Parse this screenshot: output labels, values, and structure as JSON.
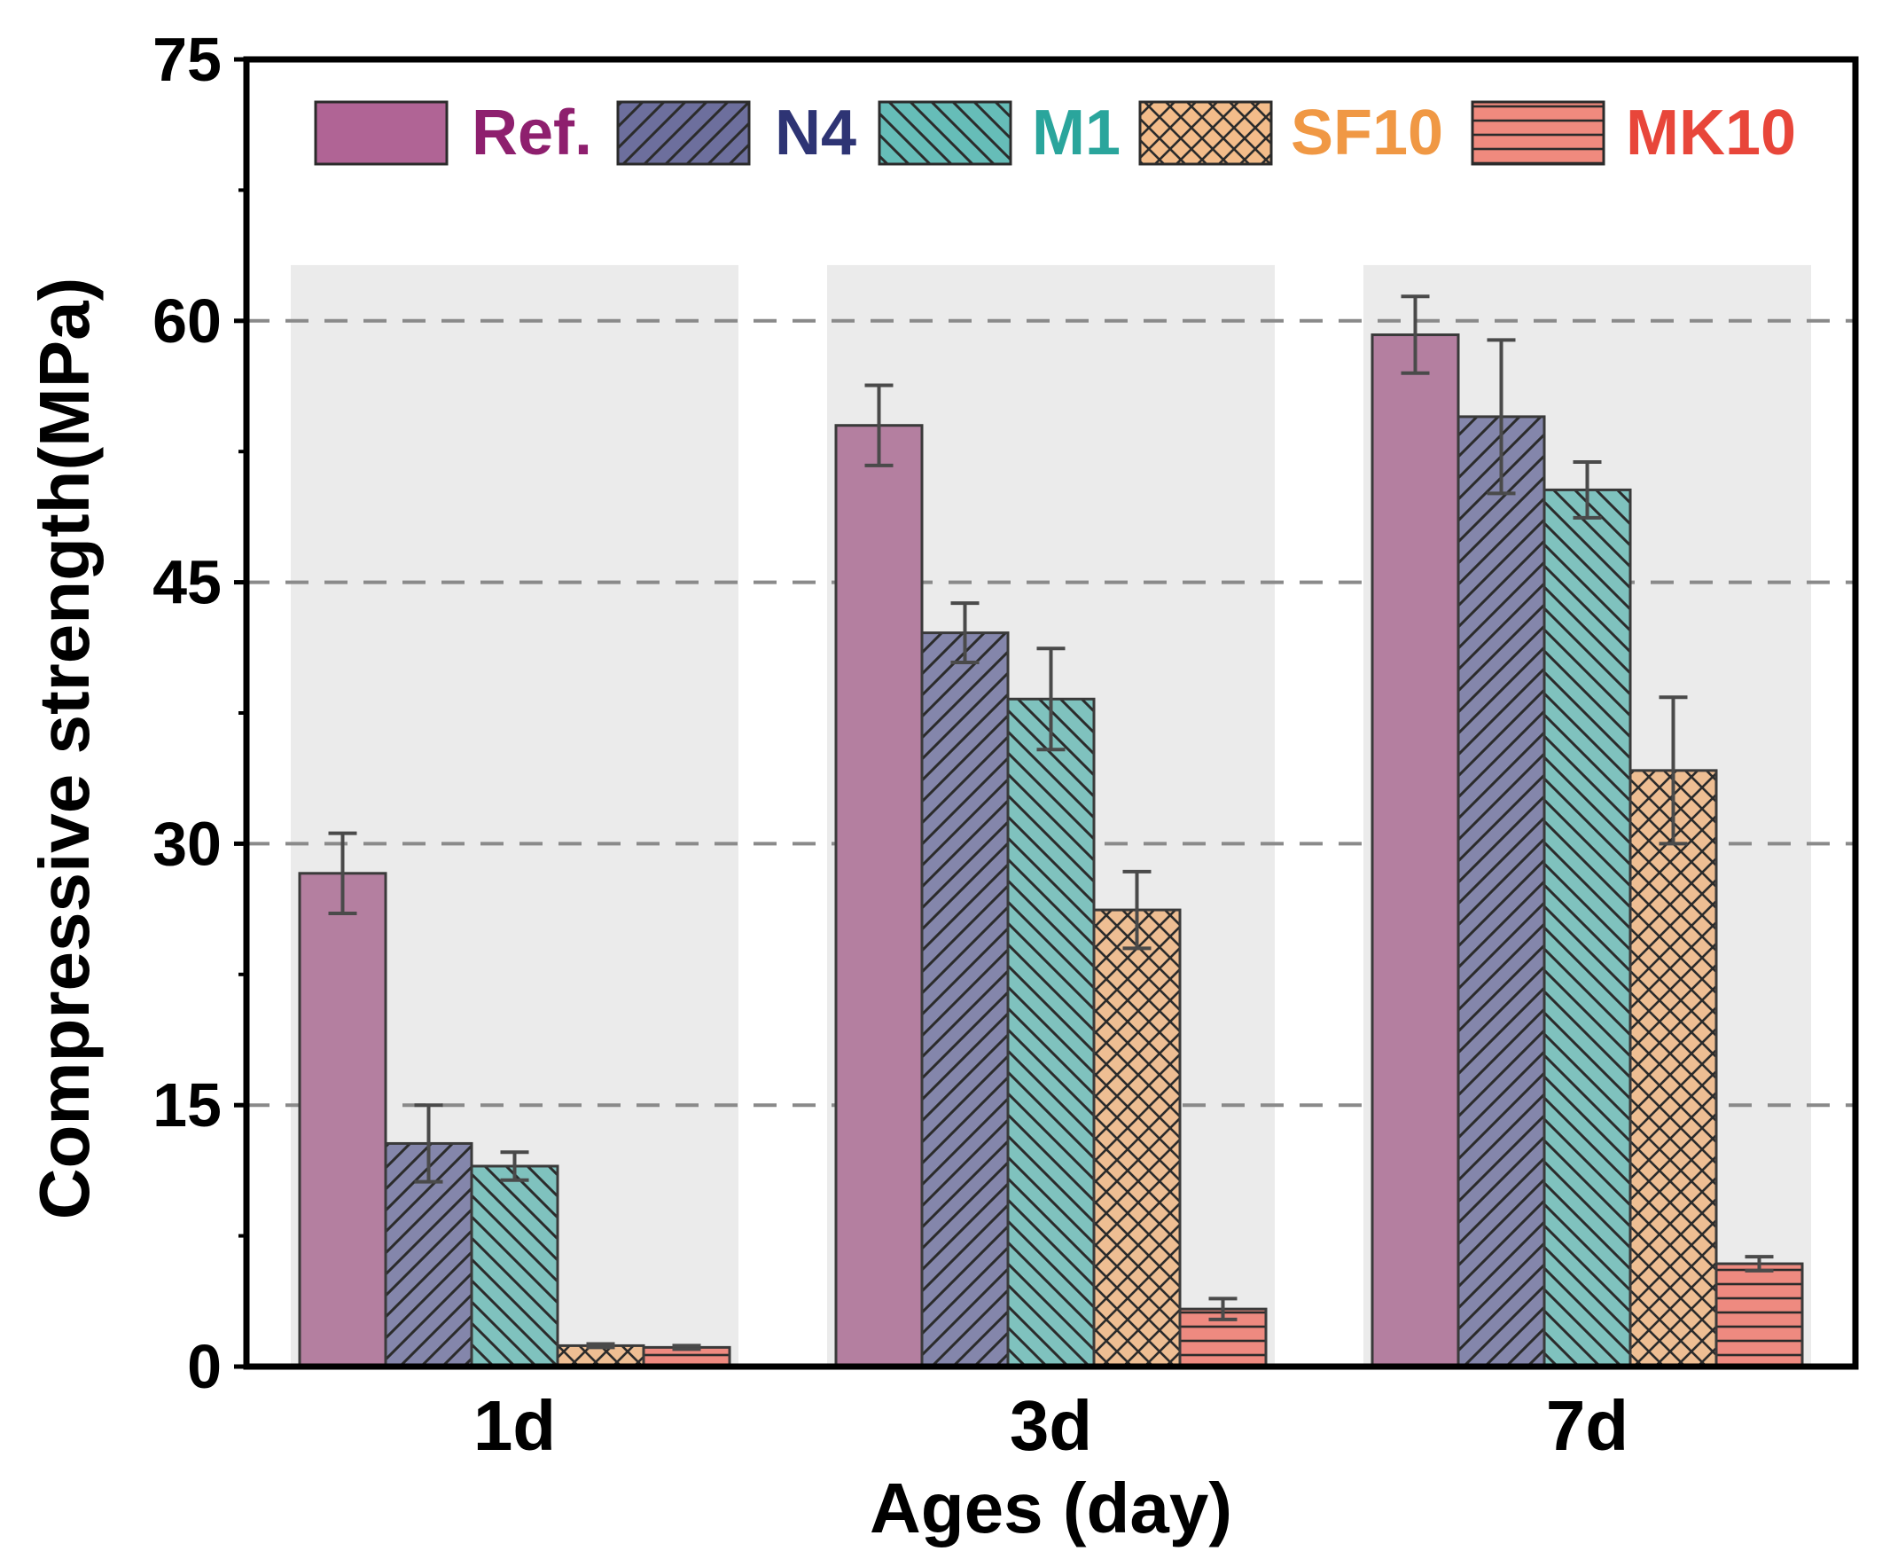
{
  "chart_data": {
    "type": "bar",
    "title": "",
    "xlabel": "Ages (day)",
    "ylabel": "Compressive strength(MPa)",
    "ylim": [
      0,
      75
    ],
    "yticks": [
      0,
      15,
      30,
      45,
      60,
      75
    ],
    "categories": [
      "1d",
      "3d",
      "7d"
    ],
    "grid": "horizontal dashed at 15, 30, 45, 60",
    "legend_position": "top",
    "series": [
      {
        "name": "Ref.",
        "values": [
          28.3,
          54.0,
          59.2
        ],
        "errors": [
          2.3,
          2.3,
          2.2
        ],
        "color": "#b47fa0",
        "legend_color": "#b06495",
        "text_color": "#8e1f6e",
        "pattern": "solid"
      },
      {
        "name": "N4",
        "values": [
          12.8,
          42.1,
          54.5
        ],
        "errors": [
          2.2,
          1.7,
          4.4
        ],
        "color": "#8486ab",
        "legend_color": "#6d6f9d",
        "text_color": "#2e3474",
        "pattern": "diagonal"
      },
      {
        "name": "M1",
        "values": [
          11.5,
          38.3,
          50.3
        ],
        "errors": [
          0.8,
          2.9,
          1.6
        ],
        "color": "#7fc2be",
        "legend_color": "#66bdb8",
        "text_color": "#2aa59c",
        "pattern": "backdiagonal"
      },
      {
        "name": "SF10",
        "values": [
          1.2,
          26.2,
          34.2
        ],
        "errors": [
          0.1,
          2.2,
          4.2
        ],
        "color": "#eebe93",
        "legend_color": "#f3bc8a",
        "text_color": "#f09844",
        "pattern": "crosshatch"
      },
      {
        "name": "MK10",
        "values": [
          1.1,
          3.3,
          5.9
        ],
        "errors": [
          0.1,
          0.6,
          0.4
        ],
        "color": "#ee8a80",
        "legend_color": "#f08a7e",
        "text_color": "#e8463a",
        "pattern": "horizontal"
      }
    ]
  }
}
